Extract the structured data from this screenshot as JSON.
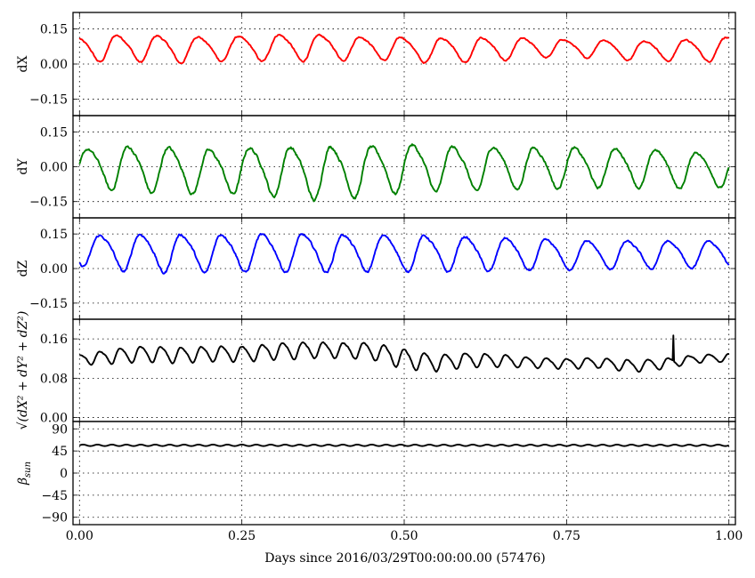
{
  "chart_data": {
    "type": "line",
    "xlabel": "Days since 2016/03/29T00:00:00.00 (57476)",
    "xlim": [
      -0.01,
      1.01
    ],
    "xticks": [
      0.0,
      0.25,
      0.5,
      0.75,
      1.0
    ],
    "xtick_labels": [
      "0.00",
      "0.25",
      "0.50",
      "0.75",
      "1.00"
    ],
    "grid": true,
    "panels": [
      {
        "id": "dx",
        "ylabel": "dX",
        "ylim": [
          -0.22,
          0.22
        ],
        "yticks": [
          -0.15,
          0.0,
          0.15
        ],
        "ytick_labels": [
          "−0.15",
          "0.00",
          "0.15"
        ],
        "color": "#ff0000",
        "series": [
          {
            "cycles": 16,
            "phase_offset": 0.28,
            "x": [
              0.0,
              0.05,
              0.1,
              0.15,
              0.2,
              0.25,
              0.3,
              0.35,
              0.4,
              0.45,
              0.5,
              0.55,
              0.6,
              0.65,
              0.7,
              0.75,
              0.8,
              0.85,
              0.9,
              0.95,
              1.0
            ],
            "mean": [
              0.068,
              0.07,
              0.07,
              0.065,
              0.068,
              0.07,
              0.072,
              0.074,
              0.072,
              0.07,
              0.066,
              0.062,
              0.063,
              0.066,
              0.07,
              0.07,
              0.066,
              0.06,
              0.06,
              0.062,
              0.066
            ],
            "amplitude": [
              0.05,
              0.055,
              0.055,
              0.055,
              0.05,
              0.05,
              0.055,
              0.055,
              0.05,
              0.045,
              0.05,
              0.052,
              0.05,
              0.048,
              0.04,
              0.035,
              0.038,
              0.04,
              0.042,
              0.045,
              0.05
            ]
          }
        ]
      },
      {
        "id": "dy",
        "ylabel": "dY",
        "ylim": [
          -0.22,
          0.22
        ],
        "yticks": [
          -0.15,
          0.0,
          0.15
        ],
        "ytick_labels": [
          "−0.15",
          "0.00",
          "0.15"
        ],
        "color": "#008000",
        "series": [
          {
            "cycles": 16,
            "phase_offset": 0.0,
            "x": [
              0.0,
              0.05,
              0.1,
              0.15,
              0.2,
              0.25,
              0.3,
              0.35,
              0.4,
              0.45,
              0.5,
              0.55,
              0.6,
              0.65,
              0.7,
              0.75,
              0.8,
              0.85,
              0.9,
              0.95,
              1.0
            ],
            "mean": [
              0.0,
              0.0,
              -0.005,
              -0.01,
              -0.015,
              -0.01,
              -0.015,
              -0.02,
              -0.02,
              -0.01,
              0.0,
              0.0,
              -0.005,
              0.0,
              0.0,
              0.0,
              0.0,
              0.0,
              -0.005,
              -0.01,
              -0.01
            ],
            "amplitude": [
              0.075,
              0.09,
              0.095,
              0.095,
              0.09,
              0.095,
              0.1,
              0.11,
              0.11,
              0.1,
              0.1,
              0.095,
              0.09,
              0.09,
              0.085,
              0.085,
              0.08,
              0.08,
              0.08,
              0.075,
              0.07
            ]
          }
        ]
      },
      {
        "id": "dz",
        "ylabel": "dZ",
        "ylim": [
          -0.22,
          0.22
        ],
        "yticks": [
          -0.15,
          0.0,
          0.15
        ],
        "ytick_labels": [
          "−0.15",
          "0.00",
          "0.15"
        ],
        "color": "#0000ff",
        "series": [
          {
            "cycles": 16,
            "phase_offset": 0.7,
            "x": [
              0.0,
              0.05,
              0.1,
              0.15,
              0.2,
              0.25,
              0.3,
              0.35,
              0.4,
              0.45,
              0.5,
              0.55,
              0.6,
              0.65,
              0.7,
              0.75,
              0.8,
              0.85,
              0.9,
              0.95,
              1.0
            ],
            "mean": [
              0.08,
              0.075,
              0.072,
              0.07,
              0.072,
              0.072,
              0.073,
              0.073,
              0.072,
              0.072,
              0.07,
              0.07,
              0.068,
              0.066,
              0.064,
              0.062,
              0.062,
              0.063,
              0.063,
              0.065,
              0.065
            ],
            "amplitude": [
              0.06,
              0.075,
              0.08,
              0.08,
              0.08,
              0.078,
              0.078,
              0.078,
              0.078,
              0.076,
              0.075,
              0.075,
              0.072,
              0.07,
              0.066,
              0.062,
              0.06,
              0.058,
              0.058,
              0.058,
              0.058
            ]
          }
        ]
      },
      {
        "id": "dr",
        "ylabel": "√(dX² + dY² + dZ²)",
        "ylim": [
          -0.008,
          0.2
        ],
        "yticks": [
          0.0,
          0.08,
          0.16
        ],
        "ytick_labels": [
          "0.00",
          "0.08",
          "0.16"
        ],
        "color": "#000000",
        "series": [
          {
            "cycles": 32,
            "phase_offset": 0.2,
            "x": [
              0.0,
              0.05,
              0.1,
              0.15,
              0.2,
              0.25,
              0.3,
              0.35,
              0.4,
              0.45,
              0.5,
              0.55,
              0.6,
              0.65,
              0.7,
              0.75,
              0.8,
              0.85,
              0.9,
              0.95,
              1.0
            ],
            "mean": [
              0.118,
              0.125,
              0.13,
              0.128,
              0.13,
              0.13,
              0.135,
              0.138,
              0.138,
              0.136,
              0.12,
              0.112,
              0.118,
              0.116,
              0.112,
              0.11,
              0.112,
              0.105,
              0.11,
              0.12,
              0.122
            ],
            "amplitude": [
              0.01,
              0.014,
              0.016,
              0.015,
              0.015,
              0.015,
              0.016,
              0.016,
              0.015,
              0.016,
              0.02,
              0.016,
              0.014,
              0.012,
              0.01,
              0.01,
              0.01,
              0.012,
              0.01,
              0.008,
              0.008
            ],
            "spike": {
              "x": 0.914,
              "y": 0.167
            }
          }
        ]
      },
      {
        "id": "beta",
        "ylabel": "β_sun",
        "ylim": [
          -105,
          105
        ],
        "yticks": [
          -90,
          -45,
          0,
          45,
          90
        ],
        "ytick_labels": [
          "−90",
          "−45",
          "0",
          "45",
          "90"
        ],
        "color": "#000000",
        "series": [
          {
            "cycles": 45,
            "phase_offset": 0.0,
            "x": [
              0.0,
              1.0
            ],
            "mean": [
              56.5,
              56.5
            ],
            "amplitude": [
              1.5,
              1.5
            ]
          }
        ]
      }
    ]
  }
}
